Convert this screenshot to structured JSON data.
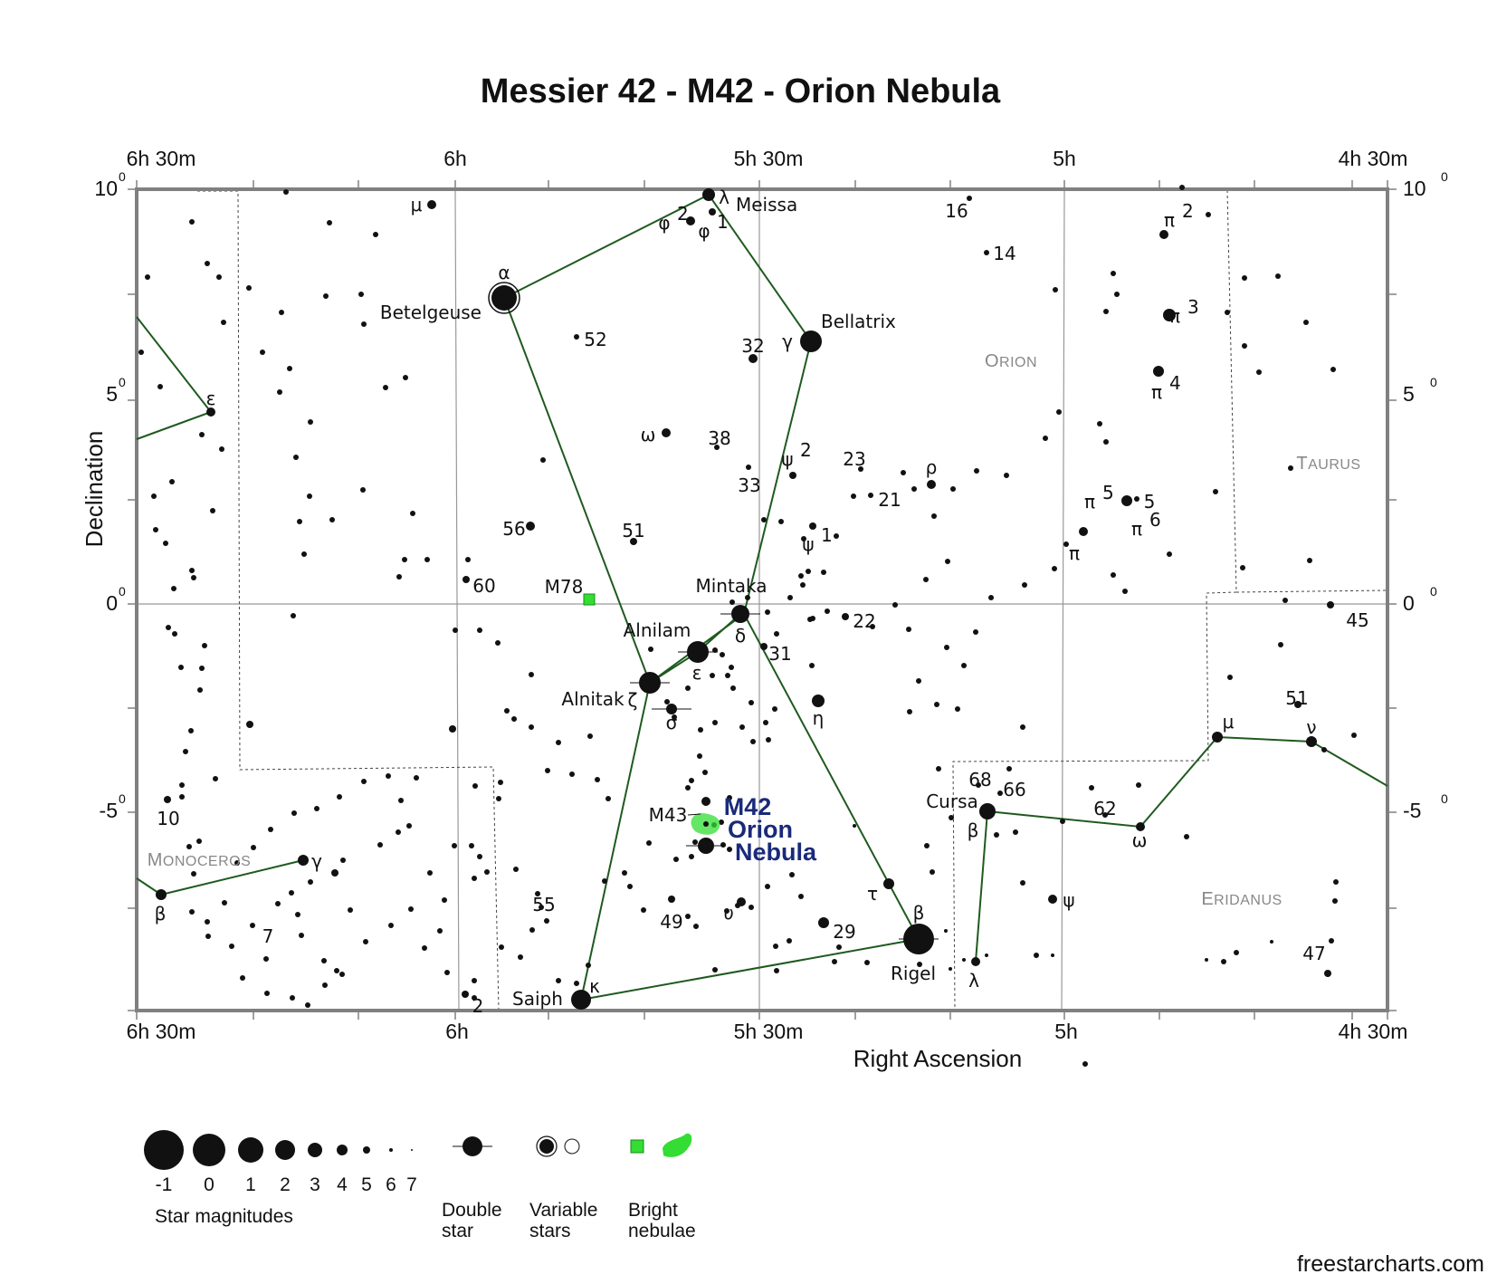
{
  "title": "Messier 42 - M42 - Orion Nebula",
  "xlabel": "Right Ascension",
  "ylabel": "Declination",
  "credit": "freestarcharts.com",
  "ra_ticks": [
    "6h 30m",
    "6h",
    "5h 30m",
    "5h",
    "4h 30m"
  ],
  "ra_ticks_bottom": [
    "6h 30m",
    "6h",
    "5h 30m",
    "5h",
    "4h 30m"
  ],
  "dec_ticks": [
    {
      "base": "10",
      "sup": "0"
    },
    {
      "base": "5",
      "sup": "0"
    },
    {
      "base": "0",
      "sup": "0"
    },
    {
      "base": "-5",
      "sup": "0"
    }
  ],
  "constellations": [
    {
      "name": "Orion",
      "label": "Orion"
    },
    {
      "name": "Taurus",
      "label": "Taurus"
    },
    {
      "name": "Monoceros",
      "label": "Monoceros"
    },
    {
      "name": "Eridanus",
      "label": "Eridanus"
    }
  ],
  "named_stars": [
    "Meissa",
    "Betelgeuse",
    "Bellatrix",
    "Mintaka",
    "Alnilam",
    "Alnitak",
    "Saiph",
    "Rigel",
    "Cursa"
  ],
  "greek_labels": [
    "λ",
    "φ",
    "φ",
    "μ",
    "α",
    "γ",
    "ω",
    "ψ",
    "ψ",
    "ρ",
    "ε",
    "δ",
    "ζ",
    "σ",
    "η",
    "κ",
    "τ",
    "β",
    "υ",
    "π",
    "π",
    "π",
    "π",
    "π",
    "π",
    "ν",
    "μ",
    "ω",
    "β",
    "λ",
    "ψ",
    "ε",
    "γ",
    "β"
  ],
  "number_labels": [
    "16",
    "14",
    "52",
    "32",
    "38",
    "33",
    "23",
    "21",
    "56",
    "51",
    "60",
    "22",
    "31",
    "5",
    "45",
    "51",
    "68",
    "66",
    "62",
    "10",
    "7",
    "55",
    "49",
    "29",
    "47",
    "2"
  ],
  "deep_sky": [
    {
      "id": "M78",
      "label": "M78",
      "type": "bright-nebula"
    },
    {
      "id": "M43",
      "label": "M43",
      "type": "bright-nebula"
    },
    {
      "id": "M42",
      "label_lines": [
        "M42",
        "Orion",
        "Nebula"
      ],
      "type": "bright-nebula"
    }
  ],
  "legend": {
    "magnitudes_title": "Star magnitudes",
    "magnitudes": [
      "-1",
      "0",
      "1",
      "2",
      "3",
      "4",
      "5",
      "6",
      "7"
    ],
    "double_star": [
      "Double",
      "star"
    ],
    "variable_stars": [
      "Variable",
      "stars"
    ],
    "bright_nebulae": [
      "Bright",
      "nebulae"
    ]
  },
  "colors": {
    "frame": "#808080",
    "grid": "#999999",
    "stick_figure": "#1f5a1f",
    "nebula": "#33dd33",
    "target_label": "#1a2a7a",
    "constellation_label": "#888888"
  }
}
